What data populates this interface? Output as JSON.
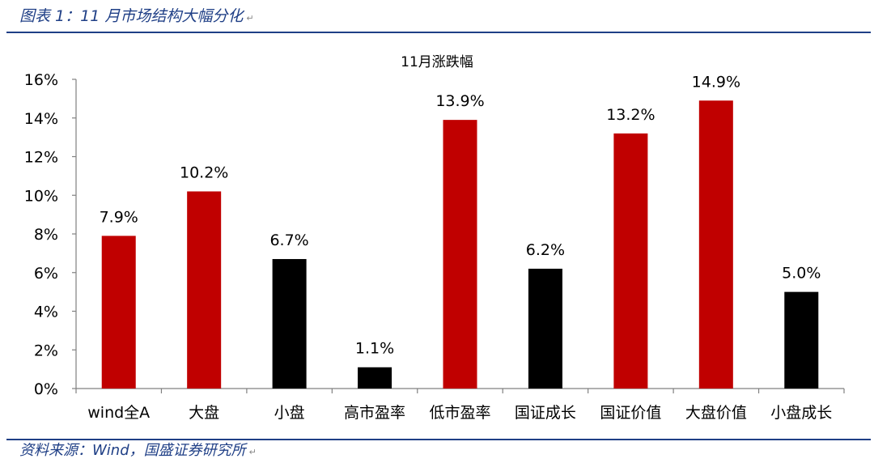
{
  "header": {
    "caption": "图表 1：11 月市场结构大幅分化"
  },
  "footer": {
    "source": "资料来源：Wind，国盛证券研究所"
  },
  "chart_data": {
    "type": "bar",
    "title": "11月涨跌幅",
    "xlabel": "",
    "ylabel": "",
    "categories": [
      "wind全A",
      "大盘",
      "小盘",
      "高市盈率",
      "低市盈率",
      "国证成长",
      "国证价值",
      "大盘价值",
      "小盘成长"
    ],
    "values": [
      7.9,
      10.2,
      6.7,
      1.1,
      13.9,
      6.2,
      13.2,
      14.9,
      5.0
    ],
    "data_labels": [
      "7.9%",
      "10.2%",
      "6.7%",
      "1.1%",
      "13.9%",
      "6.2%",
      "13.2%",
      "14.9%",
      "5.0%"
    ],
    "bar_colors": [
      "#c00000",
      "#c00000",
      "#000000",
      "#000000",
      "#c00000",
      "#000000",
      "#c00000",
      "#c00000",
      "#000000"
    ],
    "ylim": [
      0,
      16
    ],
    "yticks": [
      0,
      2,
      4,
      6,
      8,
      10,
      12,
      14,
      16
    ],
    "ytick_labels": [
      "0%",
      "2%",
      "4%",
      "6%",
      "8%",
      "10%",
      "12%",
      "14%",
      "16%"
    ],
    "grid": false,
    "legend": "none"
  }
}
